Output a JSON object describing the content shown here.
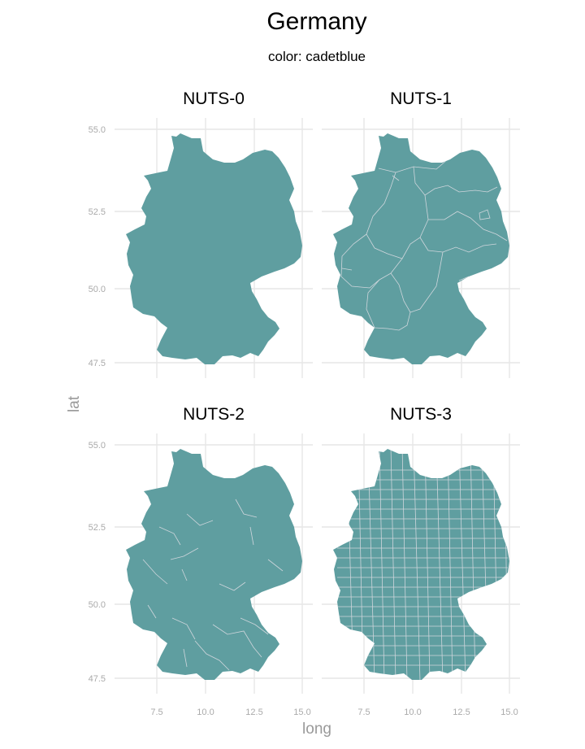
{
  "title": "Germany",
  "subtitle": "color: cadetblue",
  "colors": {
    "fill": "#5F9EA0",
    "border": "#cfd6dc",
    "grid": "#e6e6e6",
    "background": "#ffffff"
  },
  "axes": {
    "xlabel": "long",
    "ylabel": "lat",
    "x_ticks": [
      "7.5",
      "10.0",
      "12.5",
      "15.0"
    ],
    "y_ticks": [
      "55.0",
      "52.5",
      "50.0",
      "47.5"
    ]
  },
  "panels": [
    {
      "label": "NUTS-0",
      "regions": 1
    },
    {
      "label": "NUTS-1",
      "regions": 16
    },
    {
      "label": "NUTS-2",
      "regions": 38
    },
    {
      "label": "NUTS-3",
      "regions": 400
    }
  ],
  "chart_data": {
    "type": "choropleth",
    "facets": [
      "NUTS-0",
      "NUTS-1",
      "NUTS-2",
      "NUTS-3"
    ],
    "x_range": [
      5.9,
      15.0
    ],
    "y_range": [
      47.3,
      55.1
    ],
    "x_ticks": [
      7.5,
      10.0,
      12.5,
      15.0
    ],
    "y_ticks": [
      47.5,
      50.0,
      52.5,
      55.0
    ],
    "grid": true,
    "fill": "cadetblue"
  }
}
